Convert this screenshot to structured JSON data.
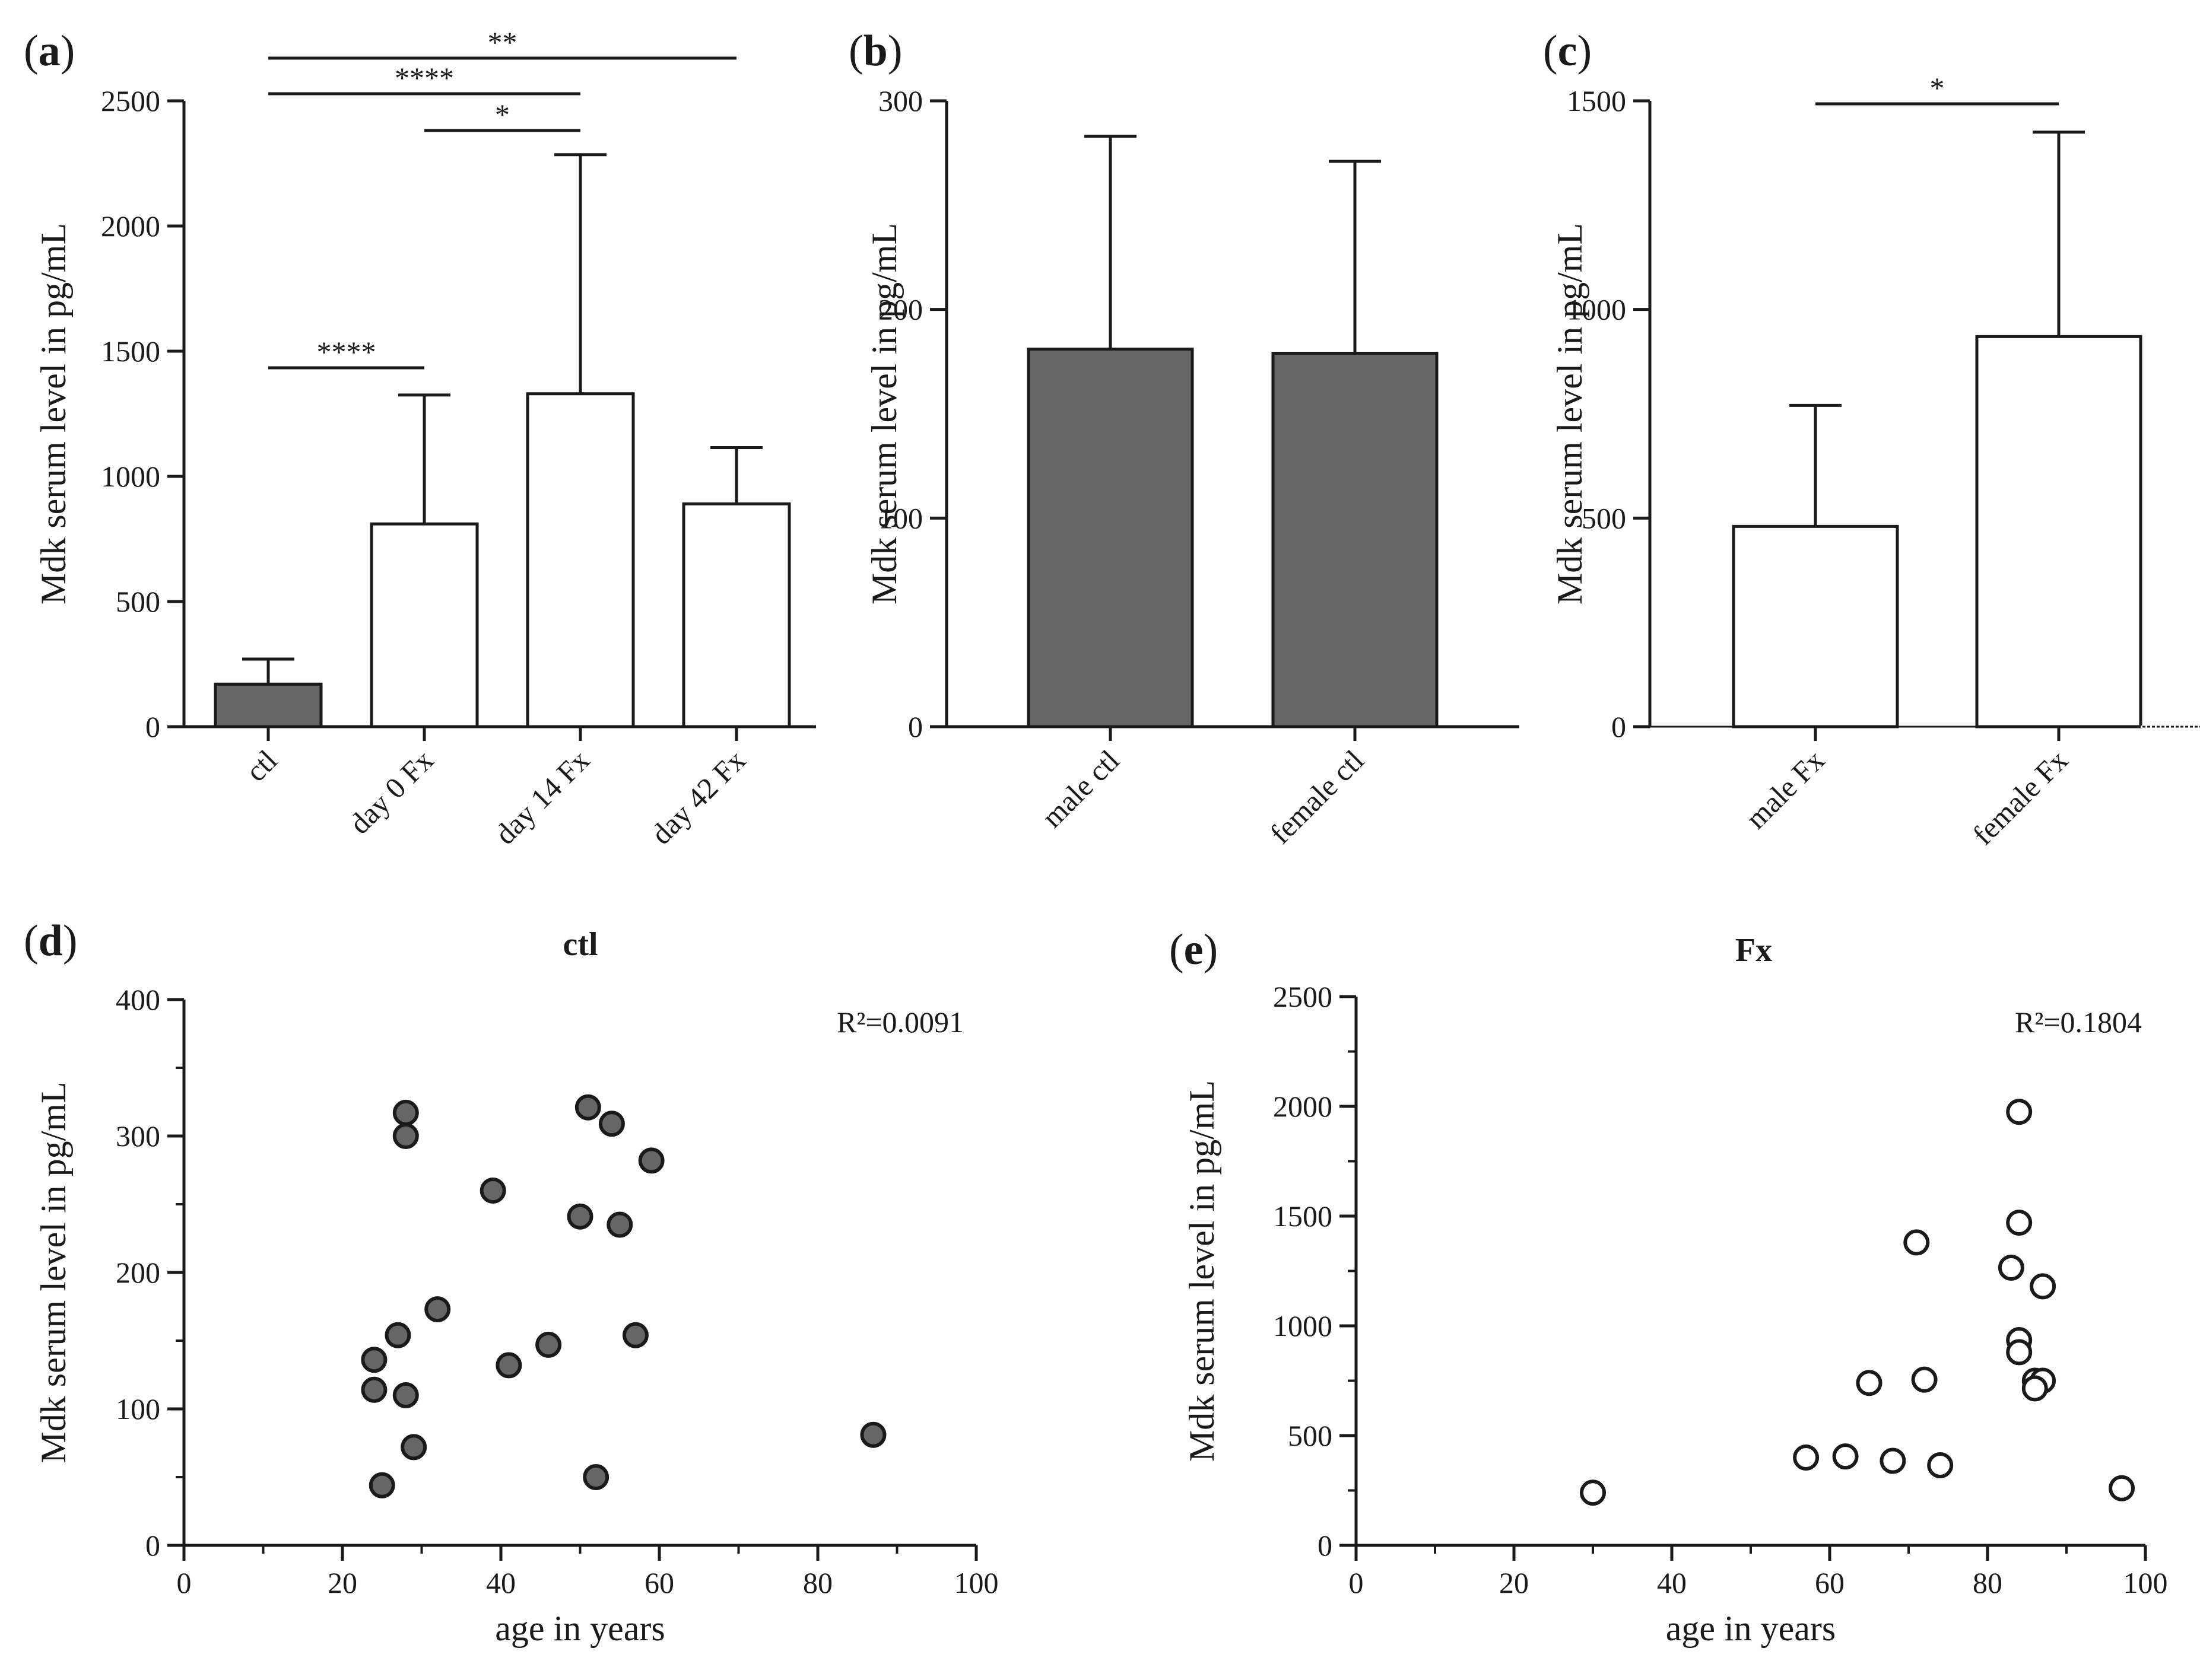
{
  "chart_data": [
    {
      "panel": "(a)",
      "type": "bar",
      "categories": [
        "ctl",
        "day 0 Fx",
        "day 14 Fx",
        "day 42 Fx"
      ],
      "values": [
        170,
        810,
        1330,
        890
      ],
      "errors_upper": [
        270,
        1325,
        2285,
        1115
      ],
      "fills": [
        "#666666",
        "#ffffff",
        "#ffffff",
        "#ffffff"
      ],
      "ylabel": "Mdk serum level in pg/mL",
      "ylim": [
        0,
        2500
      ],
      "yticks": [
        0,
        500,
        1000,
        1500,
        2000,
        2500
      ],
      "significance": [
        {
          "from": 0,
          "to": 3,
          "label": "**"
        },
        {
          "from": 0,
          "to": 2,
          "label": "****"
        },
        {
          "from": 1,
          "to": 2,
          "label": "*"
        },
        {
          "from": 0,
          "to": 1,
          "label": "****"
        }
      ]
    },
    {
      "panel": "(b)",
      "type": "bar",
      "categories": [
        "male ctl",
        "female ctl"
      ],
      "values": [
        181,
        179
      ],
      "errors_upper": [
        283,
        271
      ],
      "fills": [
        "#666666",
        "#666666"
      ],
      "ylabel": "Mdk serum level in pg/mL",
      "ylim": [
        0,
        300
      ],
      "yticks": [
        0,
        100,
        200,
        300
      ],
      "significance": []
    },
    {
      "panel": "(c)",
      "type": "bar",
      "categories": [
        "male Fx",
        "female Fx"
      ],
      "values": [
        480,
        935
      ],
      "errors_upper": [
        770,
        1425
      ],
      "fills": [
        "#ffffff",
        "#ffffff"
      ],
      "ylabel": "Mdk serum level in pg/mL",
      "ylim": [
        0,
        1500
      ],
      "yticks": [
        0,
        500,
        1000,
        1500
      ],
      "significance": [
        {
          "from": 0,
          "to": 1,
          "label": "*"
        }
      ]
    },
    {
      "panel": "(d)",
      "type": "scatter",
      "title": "ctl",
      "xlabel": "age in years",
      "ylabel": "Mdk serum level in pg/mL",
      "xlim": [
        0,
        100
      ],
      "ylim": [
        0,
        400
      ],
      "xticks": [
        0,
        20,
        40,
        60,
        80,
        100
      ],
      "yticks": [
        0,
        100,
        200,
        300,
        400
      ],
      "annotation": "R²=0.0091",
      "marker_fill": "#666666",
      "points": [
        [
          28,
          317
        ],
        [
          28,
          300
        ],
        [
          51,
          321
        ],
        [
          54,
          309
        ],
        [
          59,
          282
        ],
        [
          39,
          260
        ],
        [
          50,
          241
        ],
        [
          55,
          235
        ],
        [
          32,
          173
        ],
        [
          27,
          154
        ],
        [
          57,
          154
        ],
        [
          46,
          147
        ],
        [
          24,
          136
        ],
        [
          41,
          132
        ],
        [
          24,
          114
        ],
        [
          28,
          110
        ],
        [
          87,
          81
        ],
        [
          29,
          72
        ],
        [
          52,
          50
        ],
        [
          25,
          44
        ]
      ]
    },
    {
      "panel": "(e)",
      "type": "scatter",
      "title": "Fx",
      "xlabel": "age in years",
      "ylabel": "Mdk serum level in pg/mL",
      "xlim": [
        0,
        100
      ],
      "ylim": [
        0,
        2500
      ],
      "xticks": [
        0,
        20,
        40,
        60,
        80,
        100
      ],
      "yticks": [
        0,
        500,
        1000,
        1500,
        2000,
        2500
      ],
      "annotation": "R²=0.1804",
      "marker_fill": "#ffffff",
      "points": [
        [
          84,
          1975
        ],
        [
          84,
          1470
        ],
        [
          71,
          1380
        ],
        [
          83,
          1265
        ],
        [
          87,
          1180
        ],
        [
          84,
          935
        ],
        [
          84,
          880
        ],
        [
          65,
          740
        ],
        [
          72,
          755
        ],
        [
          86,
          750
        ],
        [
          87,
          750
        ],
        [
          86,
          715
        ],
        [
          57,
          400
        ],
        [
          62,
          405
        ],
        [
          68,
          385
        ],
        [
          74,
          365
        ],
        [
          30,
          240
        ],
        [
          97,
          260
        ]
      ]
    }
  ]
}
